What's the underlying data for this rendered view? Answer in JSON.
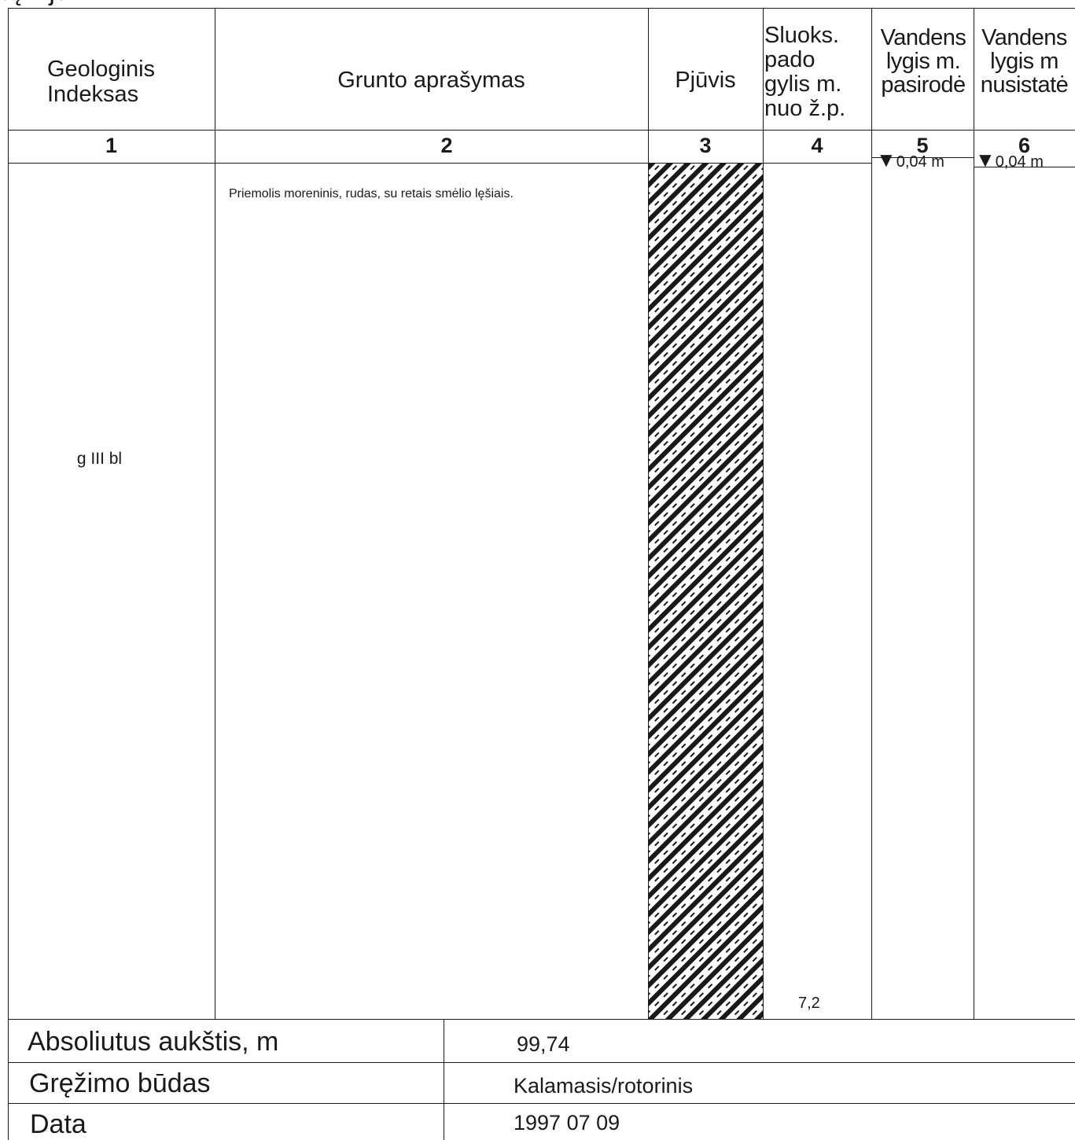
{
  "title_fragment": "aĮ…jū",
  "headers": {
    "col1": [
      "Geologinis",
      "Indeksas"
    ],
    "col2": "Grunto aprašymas",
    "col3": "Pjūvis",
    "col4": [
      "Sluoks.",
      "pado",
      "gylis m.",
      "nuo ž.p."
    ],
    "col5": [
      "Vandens",
      "lygis m.",
      "pasirodė"
    ],
    "col6": [
      "Vandens",
      "lygis m",
      "nusistatė"
    ]
  },
  "column_numbers": [
    "1",
    "2",
    "3",
    "4",
    "5",
    "6"
  ],
  "layer": {
    "index": "g III bl",
    "description": "Priemolis moreninis, rudas, su retais smėlio lęšiais.",
    "depth": "7,2"
  },
  "water": {
    "appeared": "0,04 m",
    "settled": "0,04 m",
    "marker_glyph": "▼"
  },
  "bottom": {
    "absolute_height_label": "Absoliutus aukštis, m",
    "absolute_height_value": "99,74",
    "drilling_method_label": "Gręžimo būdas",
    "drilling_method_value": "Kalamasis/rotorinis",
    "date_label": "Data",
    "date_value": "1997 07 09"
  },
  "colors": {
    "line": "#1a1a1a",
    "hatch": "#1a1a1a"
  }
}
